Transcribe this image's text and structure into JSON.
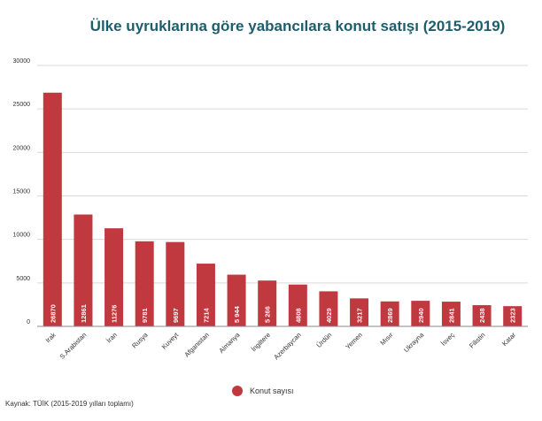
{
  "chart_data": {
    "type": "bar",
    "title": "Ülke uyruklarına göre yabancılara konut satışı (2015-2019)",
    "categories": [
      "Irak",
      "S.Arabistan",
      "İran",
      "Rusya",
      "Kuveyt",
      "Afganistan",
      "Almanya",
      "İngiltere",
      "Azerbaycan",
      "Ürdün",
      "Yemen",
      "Mısır",
      "Ukrayna",
      "İsveç",
      "Filistin",
      "Katar"
    ],
    "series": [
      {
        "name": "Konut sayısı",
        "values": [
          26870,
          12861,
          11276,
          9781,
          9697,
          7214,
          5944,
          5266,
          4808,
          4029,
          3217,
          2869,
          2940,
          2841,
          2438,
          2323
        ],
        "labels": [
          "26870",
          "12861",
          "11276",
          "9781",
          "9697",
          "7214",
          "5 944",
          "5 266",
          "4808",
          "4029",
          "3217",
          "2869",
          "2940",
          "2841",
          "2438",
          "2323"
        ]
      }
    ],
    "yticks": [
      "0",
      "5000",
      "10000",
      "15000",
      "20000",
      "25000",
      "30000"
    ],
    "ylim": [
      0,
      30000
    ],
    "grid": true,
    "legend_position": "bottom",
    "bar_color": "#c0393f",
    "title_color": "#1d5e6d"
  },
  "source": "Kaynak: TÜİK (2015-2019 yılları toplamı)"
}
